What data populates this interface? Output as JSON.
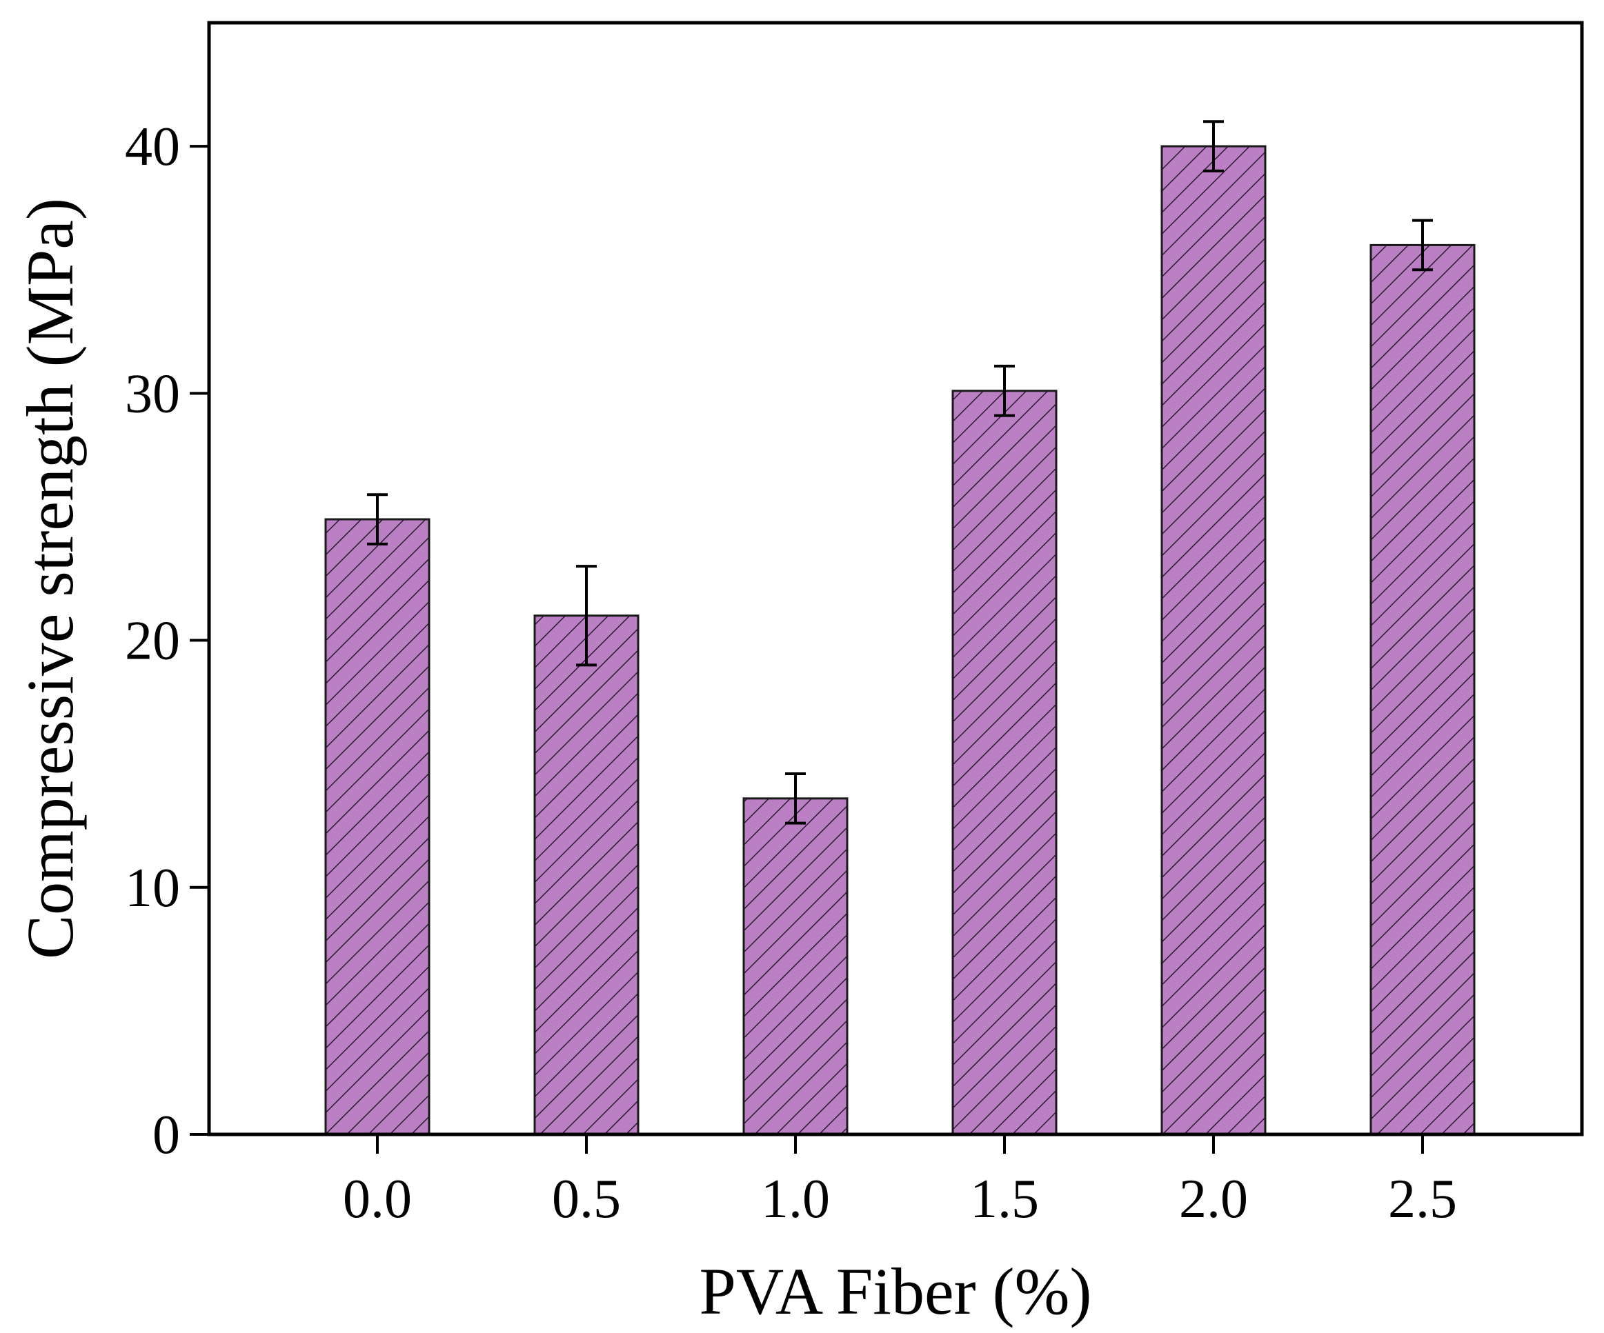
{
  "chart_data": {
    "type": "bar",
    "title": "",
    "xlabel": "PVA Fiber (%)",
    "ylabel": "Compressive strength (MPa)",
    "categories": [
      "0.0",
      "0.5",
      "1.0",
      "1.5",
      "2.0",
      "2.5"
    ],
    "values": [
      24.9,
      21.0,
      13.6,
      30.1,
      40.0,
      36.0
    ],
    "errors": [
      1.0,
      2.0,
      1.0,
      1.0,
      1.0,
      1.0
    ],
    "ylim": [
      0,
      45
    ],
    "yticks": [
      0,
      10,
      20,
      30,
      40
    ],
    "bar_color": "#bb7fc4",
    "hatch_color": "#2a1a2e",
    "hatch": "diagonal",
    "grid": false,
    "legend": "none"
  }
}
